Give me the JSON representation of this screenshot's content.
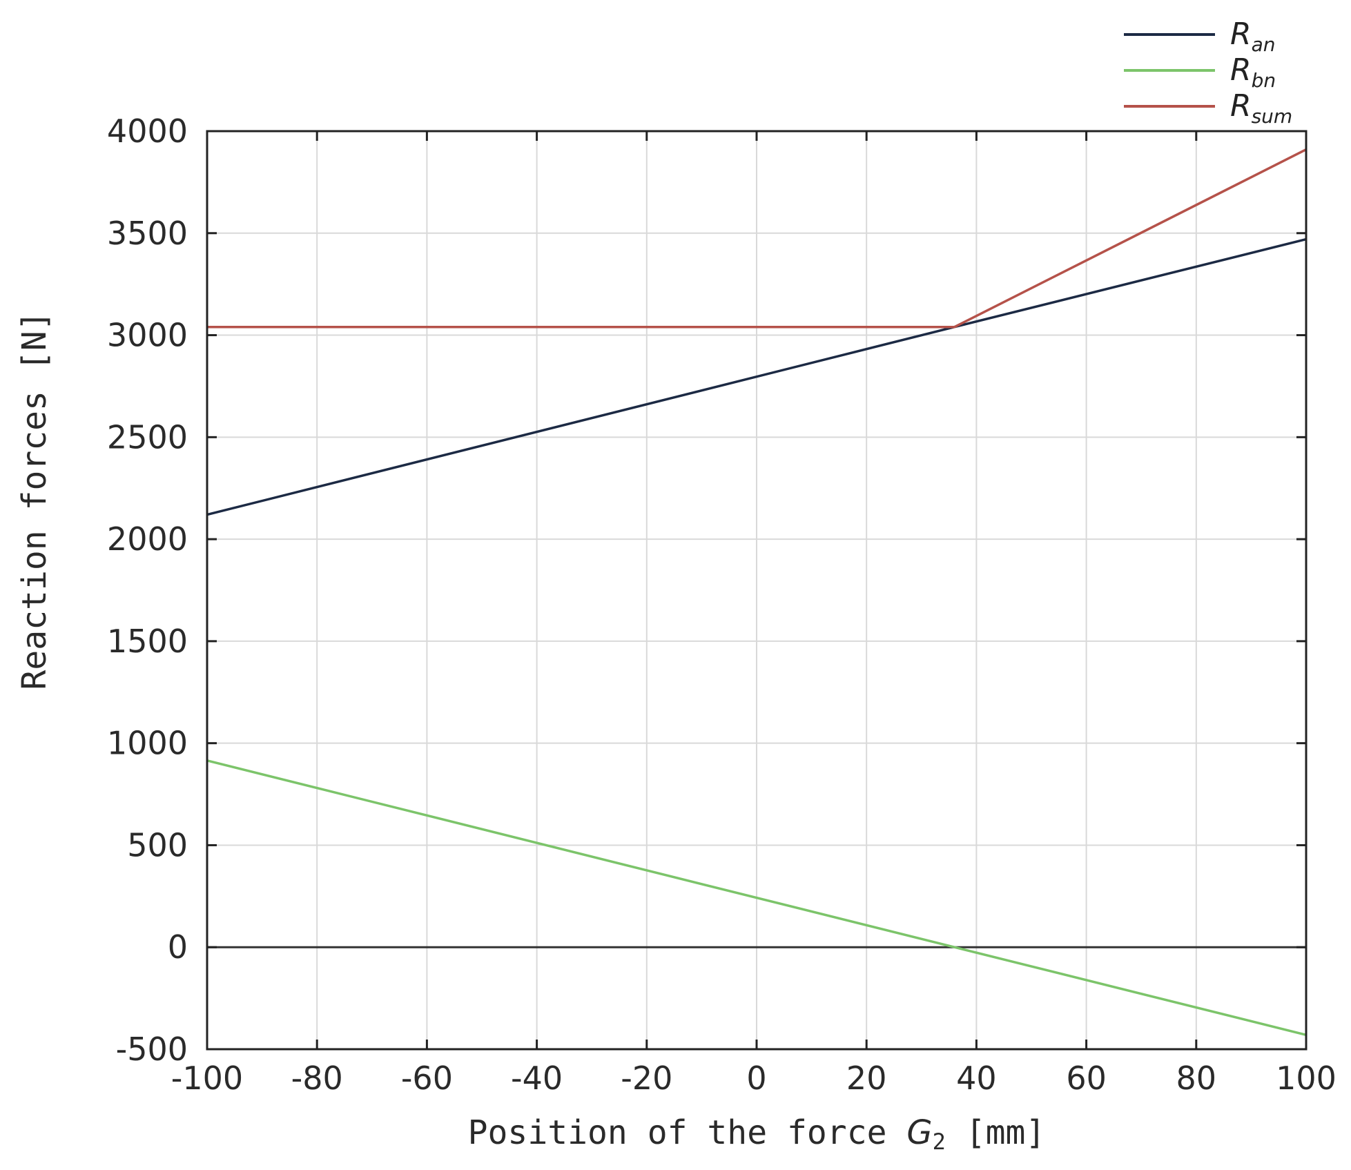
{
  "chart_data": {
    "type": "line",
    "xlabel": {
      "main": "Position of the force ",
      "symbol": "G",
      "sub": "2",
      "unit": " [mm]"
    },
    "ylabel": "Reaction forces [N]",
    "xlim": [
      -100,
      100
    ],
    "ylim": [
      -500,
      4000
    ],
    "xticks": [
      -100,
      -80,
      -60,
      -40,
      -20,
      0,
      20,
      40,
      60,
      80,
      100
    ],
    "yticks": [
      -500,
      0,
      500,
      1000,
      1500,
      2000,
      2500,
      3000,
      3500,
      4000
    ],
    "grid": true,
    "legend_position": "top-right, outside plot",
    "zero_line": true,
    "series": [
      {
        "name": "R",
        "name_sub": "an",
        "color": "#1c2a44",
        "x": [
          -100,
          36,
          100
        ],
        "y": [
          2120,
          3040,
          3470
        ]
      },
      {
        "name": "R",
        "name_sub": "bn",
        "color": "#7cc46a",
        "x": [
          -100,
          36,
          100
        ],
        "y": [
          915,
          0,
          -430
        ]
      },
      {
        "name": "R",
        "name_sub": "sum",
        "color": "#b5524a",
        "x": [
          -100,
          36,
          100
        ],
        "y": [
          3040,
          3040,
          3910
        ]
      }
    ]
  }
}
